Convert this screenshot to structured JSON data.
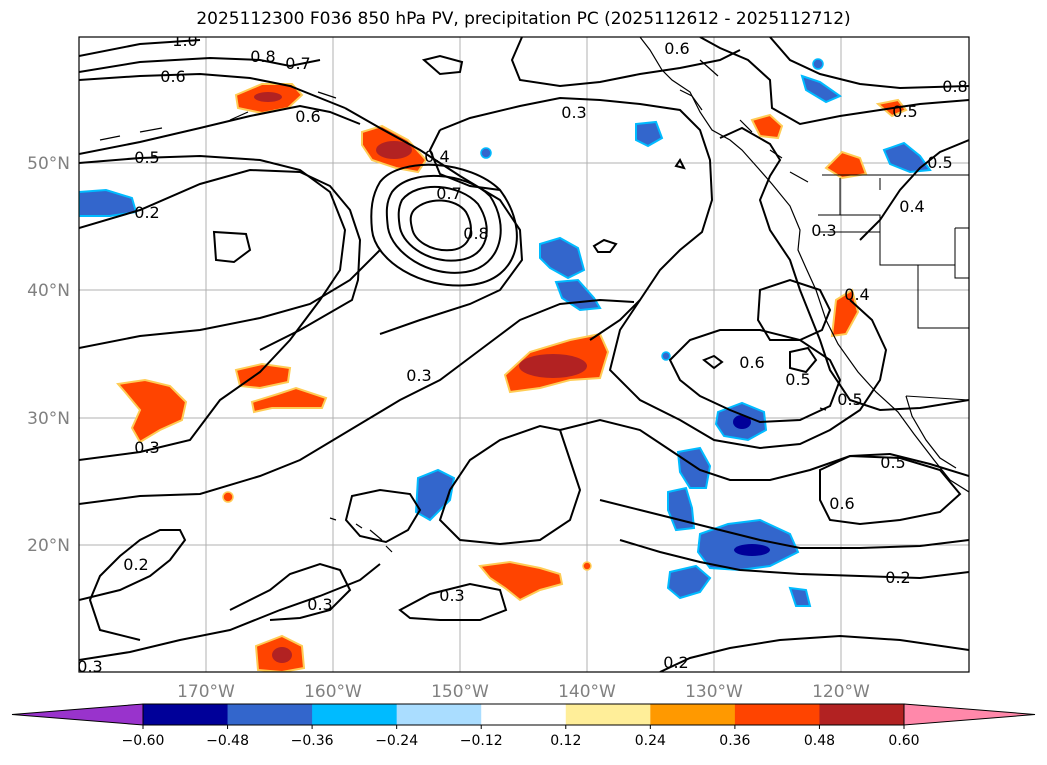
{
  "title": "2025112300 F036 850 hPa PV, precipitation PC (2025112612 - 2025112712)",
  "lon_labels": [
    "170°W",
    "160°W",
    "150°W",
    "140°W",
    "130°W",
    "120°W"
  ],
  "lat_labels": [
    "50°N",
    "40°N",
    "30°N",
    "20°N"
  ],
  "colorbar": {
    "ticks": [
      "−0.60",
      "−0.48",
      "−0.36",
      "−0.24",
      "−0.12",
      "0.12",
      "0.24",
      "0.36",
      "0.48",
      "0.60"
    ],
    "colors": [
      "#9933cc",
      "#000099",
      "#3366cc",
      "#00bbff",
      "#aaddff",
      "#ffffff",
      "#ffee99",
      "#ff9900",
      "#ff4400",
      "#b22222",
      "#ff88aa"
    ]
  },
  "contour_labels": [
    "1.0",
    "0.8",
    "0.7",
    "0.6",
    "0.6",
    "0.5",
    "0.2",
    "0.3",
    "0.4",
    "0.7",
    "0.8",
    "0.6",
    "0.8",
    "0.5",
    "0.5",
    "0.4",
    "0.3",
    "0.4",
    "0.3",
    "0.3",
    "0.6",
    "0.5",
    "0.5",
    "0.5",
    "0.6",
    "0.2",
    "0.2",
    "0.3",
    "0.3",
    "0.2",
    "0.3"
  ]
}
